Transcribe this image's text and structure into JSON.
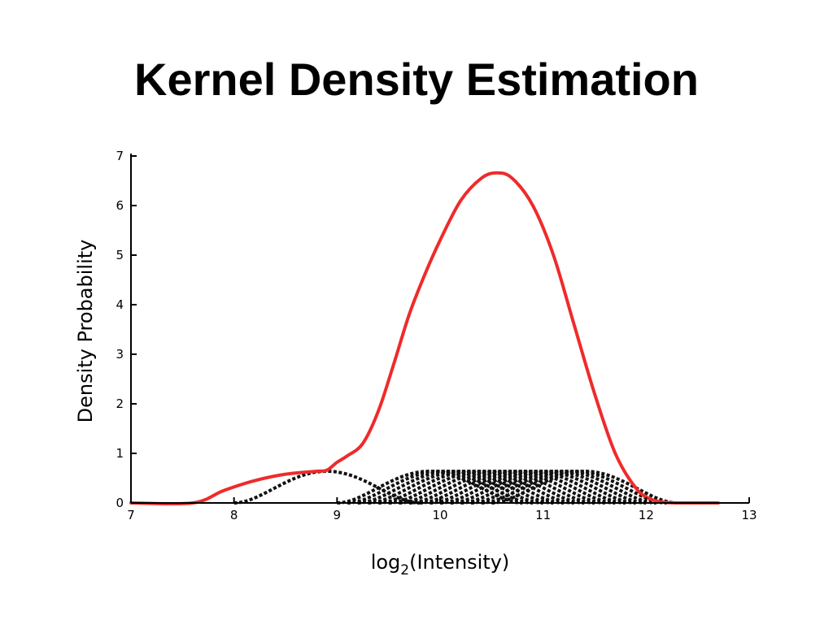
{
  "title": "Kernel Density Estimation",
  "chart_data": {
    "type": "line",
    "xlabel": {
      "base": "log",
      "subscript": "2",
      "rest": "(Intensity)"
    },
    "ylabel": "Density Probability",
    "xlim": [
      7,
      13
    ],
    "ylim": [
      0,
      7
    ],
    "xticks": [
      "7",
      "8",
      "9",
      "10",
      "11",
      "12",
      "13"
    ],
    "yticks": [
      "0",
      "1",
      "2",
      "3",
      "4",
      "5",
      "6",
      "7"
    ],
    "grid": false,
    "legend": "none",
    "colors": {
      "density": "#ee2b2b",
      "kernel": "#111111"
    },
    "series": [
      {
        "role": "density-estimate",
        "style": "solid",
        "x": [
          7.0,
          7.6,
          7.9,
          8.2,
          8.5,
          8.8,
          8.9,
          9.0,
          9.1,
          9.25,
          9.4,
          9.55,
          9.7,
          9.85,
          10.0,
          10.2,
          10.4,
          10.55,
          10.7,
          10.9,
          11.1,
          11.3,
          11.5,
          11.7,
          11.9,
          12.05,
          12.2,
          12.35,
          12.7
        ],
        "y": [
          0.0,
          0.0,
          0.25,
          0.45,
          0.58,
          0.64,
          0.66,
          0.82,
          0.95,
          1.2,
          1.85,
          2.8,
          3.8,
          4.6,
          5.3,
          6.1,
          6.55,
          6.66,
          6.55,
          6.0,
          5.0,
          3.6,
          2.2,
          1.0,
          0.3,
          0.07,
          0.01,
          0.0,
          0.0
        ]
      }
    ],
    "kernels": {
      "role": "individual-kernels",
      "style": "dotted",
      "peak": 0.64,
      "halfwidth": 0.9,
      "centers": [
        8.9,
        9.9,
        10.0,
        10.1,
        10.2,
        10.3,
        10.4,
        10.5,
        10.6,
        10.7,
        10.8,
        10.9,
        11.0,
        11.1,
        11.2,
        11.3,
        11.4
      ]
    }
  }
}
